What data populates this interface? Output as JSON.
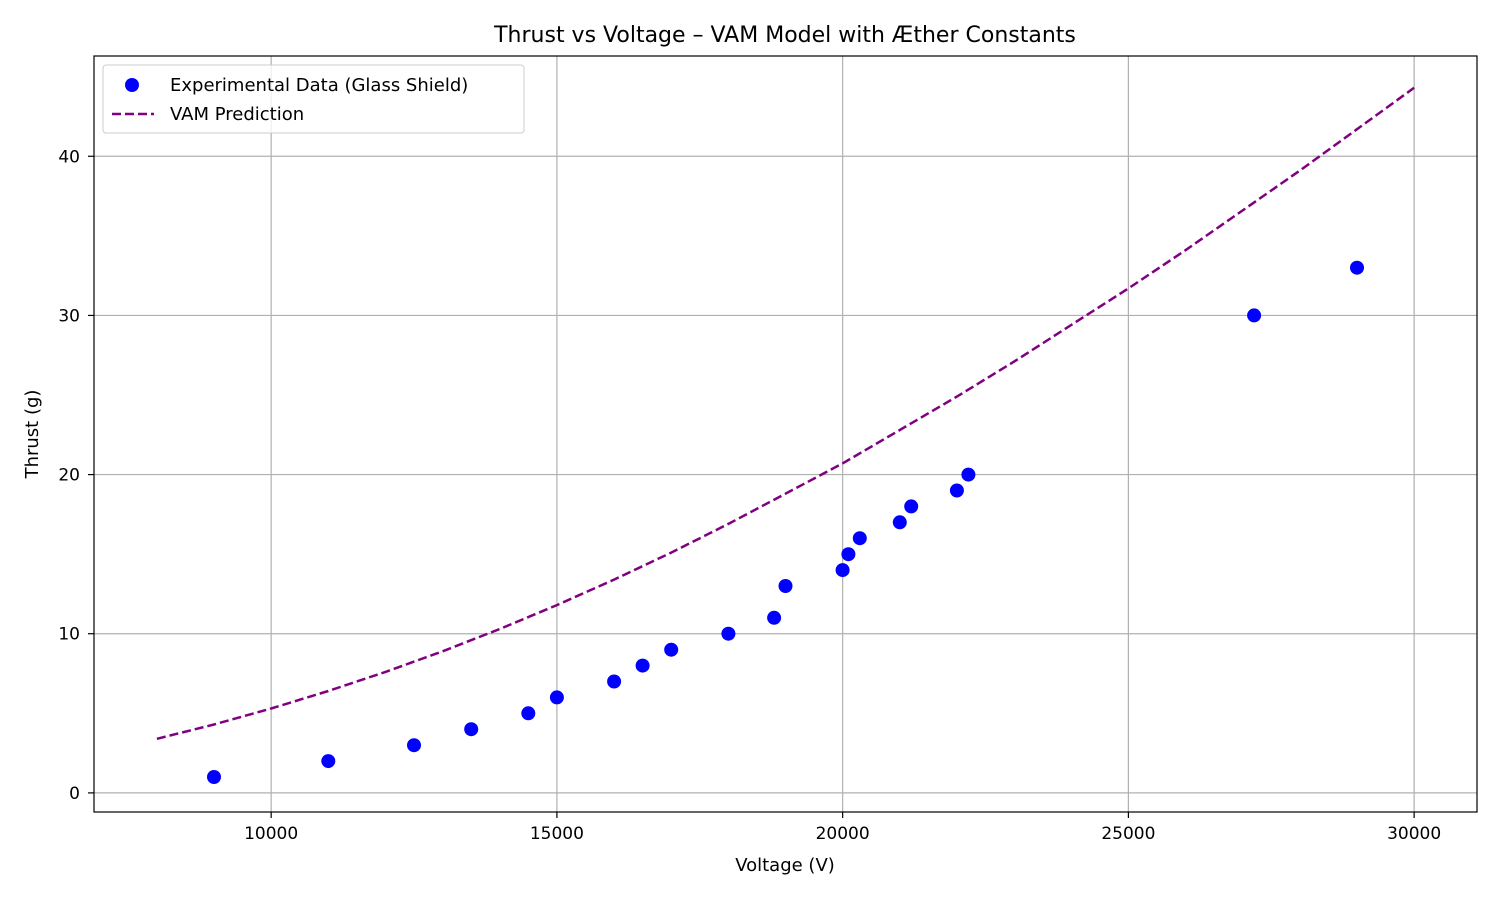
{
  "chart_data": {
    "type": "scatter",
    "title": "Thrust vs Voltage – VAM Model with Æther Constants",
    "xlabel": "Voltage (V)",
    "ylabel": "Thrust (g)",
    "xlim": [
      6900,
      31100
    ],
    "ylim": [
      -1.2,
      46.3
    ],
    "xticks": [
      10000,
      15000,
      20000,
      25000,
      30000
    ],
    "yticks": [
      0,
      10,
      20,
      30,
      40
    ],
    "xtick_labels": [
      "10000",
      "15000",
      "20000",
      "25000",
      "30000"
    ],
    "ytick_labels": [
      "0",
      "10",
      "20",
      "30",
      "40"
    ],
    "grid": true,
    "legend_position": "top-left",
    "series": [
      {
        "name": "Experimental Data (Glass Shield)",
        "kind": "scatter",
        "color": "#0000ff",
        "points": [
          [
            9000,
            1
          ],
          [
            11000,
            2
          ],
          [
            12500,
            3
          ],
          [
            13500,
            4
          ],
          [
            14500,
            5
          ],
          [
            15000,
            6
          ],
          [
            16000,
            7
          ],
          [
            16500,
            8
          ],
          [
            17000,
            9
          ],
          [
            18000,
            10
          ],
          [
            18800,
            11
          ],
          [
            19000,
            13
          ],
          [
            20000,
            14
          ],
          [
            20100,
            15
          ],
          [
            20300,
            16
          ],
          [
            21000,
            17
          ],
          [
            21200,
            18
          ],
          [
            22000,
            19
          ],
          [
            22200,
            20
          ],
          [
            27200,
            30
          ],
          [
            29000,
            33
          ]
        ]
      },
      {
        "name": "VAM Prediction",
        "kind": "line",
        "style": "dashed",
        "color": "#800080",
        "points": [
          [
            8000,
            3.4
          ],
          [
            9000,
            4.3
          ],
          [
            10000,
            5.3
          ],
          [
            11000,
            6.4
          ],
          [
            12000,
            7.6
          ],
          [
            13000,
            8.9
          ],
          [
            14000,
            10.3
          ],
          [
            15000,
            11.8
          ],
          [
            16000,
            13.4
          ],
          [
            17000,
            15.1
          ],
          [
            18000,
            16.9
          ],
          [
            19000,
            18.8
          ],
          [
            20000,
            20.7
          ],
          [
            21000,
            22.8
          ],
          [
            22000,
            24.9
          ],
          [
            23000,
            27.1
          ],
          [
            24000,
            29.4
          ],
          [
            25000,
            31.7
          ],
          [
            26000,
            34.1
          ],
          [
            27000,
            36.6
          ],
          [
            28000,
            39.1
          ],
          [
            29000,
            41.7
          ],
          [
            30000,
            44.3
          ]
        ]
      }
    ]
  }
}
